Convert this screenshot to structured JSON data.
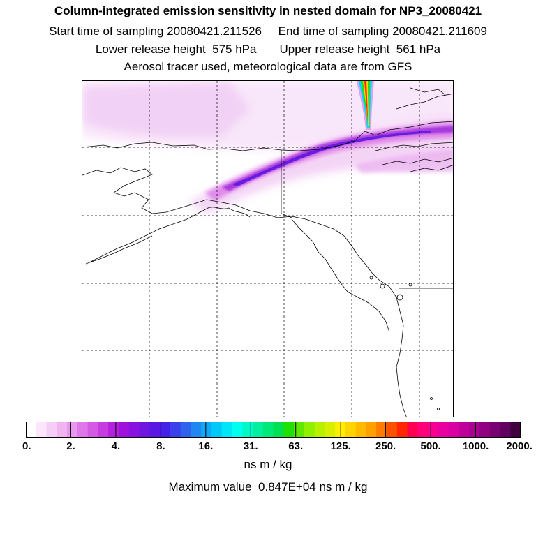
{
  "header": {
    "title": "Column-integrated emission sensitivity in nested domain for NP3_20080421",
    "start_time": "Start time of sampling 20080421.211526",
    "end_time": "End time of sampling 20080421.211609",
    "lower_release": "Lower release height  575 hPa",
    "upper_release": "Upper release height  561 hPa",
    "tracer_info": "Aerosol tracer used, meteorological data are from GFS"
  },
  "colorbar": {
    "tick_labels": [
      "0.",
      "2.",
      "4.",
      "8.",
      "16.",
      "31.",
      "63.",
      "125.",
      "250.",
      "500.",
      "1000.",
      "2000."
    ],
    "colors": [
      "#ffffff",
      "#fbe6fb",
      "#f6cdf6",
      "#f0b4f0",
      "#e896ee",
      "#df77ea",
      "#d45ae6",
      "#c63ce0",
      "#b520dd",
      "#a010dc",
      "#8a12e0",
      "#7014e0",
      "#5a16e3",
      "#4520e6",
      "#3a40ea",
      "#2f63ee",
      "#1f86f2",
      "#10a8f5",
      "#00c8f8",
      "#00e6f8",
      "#00ffee",
      "#00f8c8",
      "#00f0a0",
      "#00e878",
      "#00e050",
      "#20e000",
      "#60e800",
      "#90f000",
      "#b8f000",
      "#d8f000",
      "#ffee00",
      "#ffd400",
      "#ffba00",
      "#ffa000",
      "#ff7a00",
      "#ff5000",
      "#ff2600",
      "#ff0050",
      "#ff0078",
      "#f80090",
      "#e800a0",
      "#d800a0",
      "#c0009a",
      "#a80090",
      "#900080",
      "#780070",
      "#600060",
      "#400040"
    ],
    "units": "ns m / kg"
  },
  "maximum": "Maximum value  0.847E+04 ns m / kg"
}
